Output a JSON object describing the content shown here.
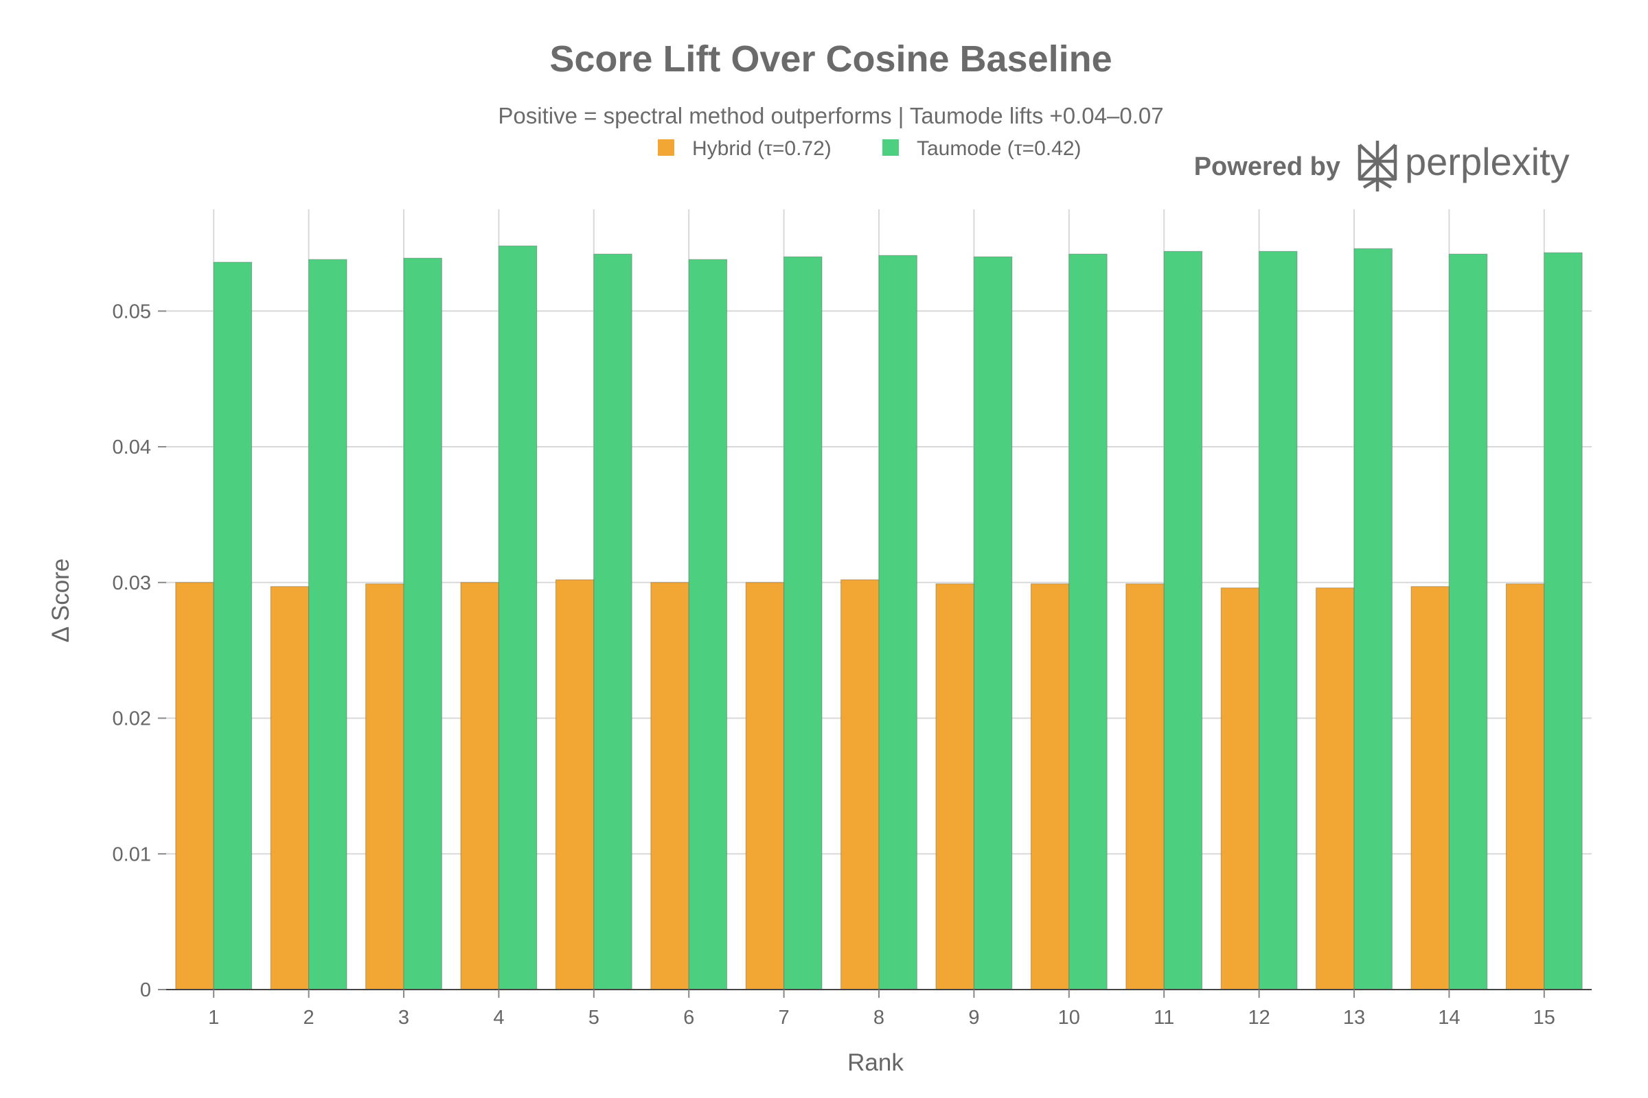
{
  "chart_data": {
    "type": "bar",
    "title": "Score Lift Over Cosine Baseline",
    "subtitle": "Positive = spectral method outperforms | Taumode lifts +0.04–0.07",
    "xlabel": "Rank",
    "ylabel": "Δ Score",
    "categories": [
      "1",
      "2",
      "3",
      "4",
      "5",
      "6",
      "7",
      "8",
      "9",
      "10",
      "11",
      "12",
      "13",
      "14",
      "15"
    ],
    "ylim": [
      0,
      0.0575
    ],
    "yticks": [
      0,
      0.01,
      0.02,
      0.03,
      0.04,
      0.05
    ],
    "ytick_labels": [
      "0",
      "0.01",
      "0.02",
      "0.03",
      "0.04",
      "0.05"
    ],
    "grid": true,
    "legend_position": "top-center",
    "series": [
      {
        "name": "Hybrid (τ=0.72)",
        "color": "#f2a633",
        "values": [
          0.03,
          0.0297,
          0.0299,
          0.03,
          0.0302,
          0.03,
          0.03,
          0.0302,
          0.0299,
          0.0299,
          0.0299,
          0.0296,
          0.0296,
          0.0297,
          0.0299
        ]
      },
      {
        "name": "Taumode (τ=0.42)",
        "color": "#4cd080",
        "values": [
          0.0536,
          0.0538,
          0.0539,
          0.0548,
          0.0542,
          0.0538,
          0.054,
          0.0541,
          0.054,
          0.0542,
          0.0544,
          0.0544,
          0.0546,
          0.0542,
          0.0543
        ]
      }
    ]
  },
  "branding": {
    "powered_by": "Powered by",
    "brand_name": "perplexity",
    "logo_icon": "perplexity-logo-icon"
  }
}
